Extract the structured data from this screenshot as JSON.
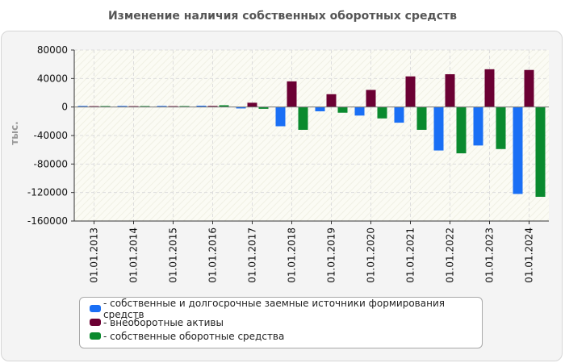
{
  "chart_data": {
    "type": "bar",
    "title": "Изменение наличия собственных оборотных средств",
    "ylabel": "тыс.",
    "xlabel": "",
    "ylim": [
      -160000,
      80000
    ],
    "yticks": [
      80000,
      40000,
      0,
      -40000,
      -80000,
      -120000,
      -160000
    ],
    "ytick_labels": [
      "80000",
      "40000",
      "0",
      "-40000",
      "-80000",
      "-120000",
      "-160000"
    ],
    "categories": [
      "01.01.2013",
      "01.01.2014",
      "01.01.2015",
      "01.01.2016",
      "01.01.2017",
      "01.01.2018",
      "01.01.2019",
      "01.01.2020",
      "01.01.2021",
      "01.01.2022",
      "01.01.2023",
      "01.01.2024"
    ],
    "series": [
      {
        "name": "собственные и долгосрочные заемные источники формирования средств",
        "color": "#1a6ff5",
        "values": [
          1500,
          1500,
          1500,
          1800,
          -2000,
          -27000,
          -6000,
          -12000,
          -22000,
          -61000,
          -54000,
          -122000
        ]
      },
      {
        "name": "внеоборотные активы",
        "color": "#6b0033",
        "values": [
          1200,
          1200,
          1200,
          1500,
          6000,
          36000,
          18000,
          24000,
          43000,
          46000,
          53000,
          52000
        ]
      },
      {
        "name": "собственные оборотные средства",
        "color": "#0a8a2e",
        "values": [
          1300,
          1300,
          1300,
          2500,
          -2500,
          -32000,
          -8000,
          -16000,
          -32000,
          -65000,
          -59000,
          -126000
        ]
      }
    ],
    "legend_position": "bottom"
  }
}
